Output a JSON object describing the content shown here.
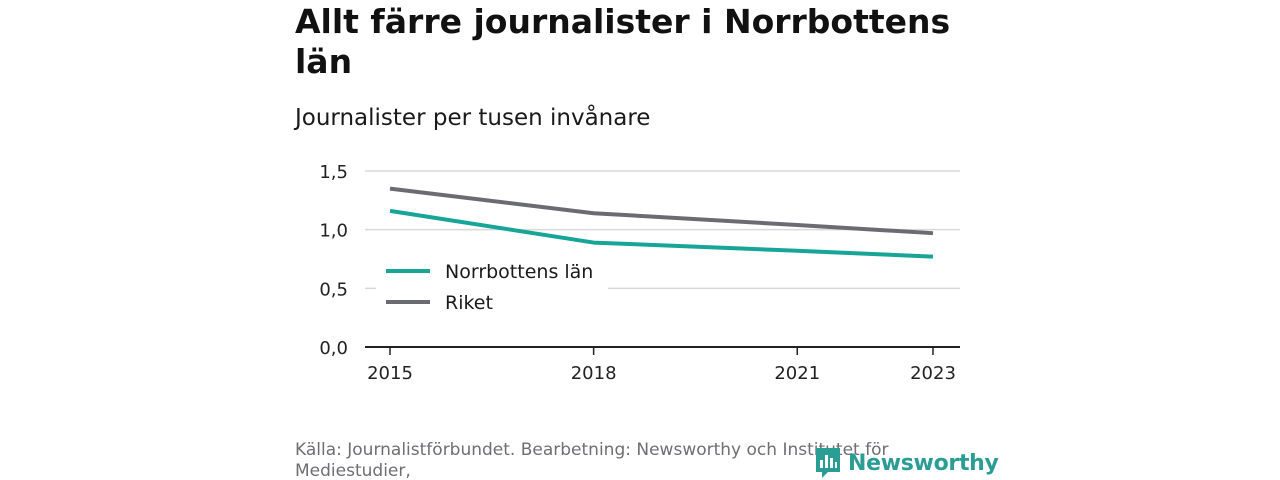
{
  "header": {
    "title": "Allt färre journalister i Norrbottens län",
    "subtitle": "Journalister per tusen invånare"
  },
  "footer": {
    "source": "Källa: Journalistförbundet. Bearbetning: Newsworthy och Institutet för Mediestudier,",
    "brand": "Newsworthy",
    "brand_icon": "newsworthy-logo-icon"
  },
  "colors": {
    "norrbotten": "#17a597",
    "riket": "#6b6b73",
    "grid": "#d9d9d9",
    "axis": "#222222",
    "brand": "#2a9d95"
  },
  "chart_data": {
    "type": "line",
    "x": [
      2015,
      2018,
      2021,
      2023
    ],
    "x_tick_labels": [
      "2015",
      "2018",
      "2021",
      "2023"
    ],
    "y_tick_labels": [
      "0,0",
      "0,5",
      "1,0",
      "1,5"
    ],
    "y_ticks": [
      0,
      0.5,
      1.0,
      1.5
    ],
    "ylim": [
      0,
      1.5
    ],
    "xlim": [
      2015,
      2023
    ],
    "grid": true,
    "legend_placement": "lower-left",
    "series": [
      {
        "name": "Norrbottens län",
        "values": [
          1.16,
          0.89,
          0.82,
          0.77
        ],
        "color": "#17a597"
      },
      {
        "name": "Riket",
        "values": [
          1.35,
          1.14,
          1.04,
          0.97
        ],
        "color": "#6b6b73"
      }
    ]
  }
}
